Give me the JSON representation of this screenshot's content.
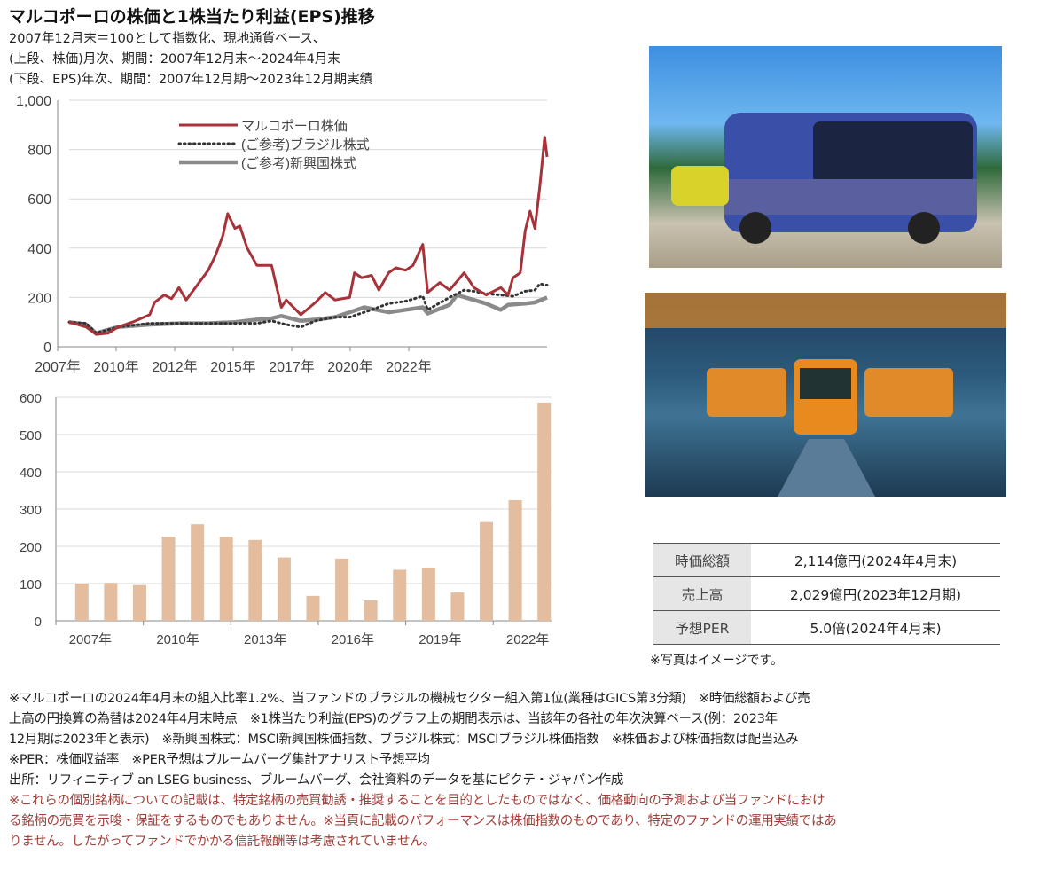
{
  "header": {
    "title": "マルコポーロの株価と1株当たり利益(EPS)推移",
    "subtitle_lines": [
      "2007年12月末＝100として指数化、現地通貨ベース、",
      "(上段、株価)月次、期間：2007年12月末～2024年4月末",
      "(下段、EPS)年次、期間：2007年12月期～2023年12月期実績"
    ]
  },
  "chart_data": [
    {
      "type": "line",
      "ylim": [
        0,
        1000
      ],
      "yticks": [
        "0",
        "200",
        "400",
        "600",
        "800",
        "1,000"
      ],
      "ytick_values": [
        0,
        200,
        400,
        600,
        800,
        1000
      ],
      "xlim": [
        "2007-12",
        "2024-04"
      ],
      "xtick_labels": [
        "2007年",
        "2010年",
        "2012年",
        "2015年",
        "2017年",
        "2020年",
        "2022年"
      ],
      "grid": true,
      "legend_placement": "top-center",
      "series": [
        {
          "name": "マルコポーロ株価",
          "color": "#a8323a",
          "style": "solid",
          "x": [
            "2007-12",
            "2008-07",
            "2008-11",
            "2009-04",
            "2009-08",
            "2010-02",
            "2010-09",
            "2010-11",
            "2011-03",
            "2011-06",
            "2011-09",
            "2011-12",
            "2012-03",
            "2012-09",
            "2012-12",
            "2013-03",
            "2013-05",
            "2013-08",
            "2013-10",
            "2014-01",
            "2014-05",
            "2014-11",
            "2015-03",
            "2015-05",
            "2015-11",
            "2016-05",
            "2016-09",
            "2017-01",
            "2017-07",
            "2017-09",
            "2017-12",
            "2018-04",
            "2018-07",
            "2018-11",
            "2019-02",
            "2019-06",
            "2019-09",
            "2020-01",
            "2020-03",
            "2020-08",
            "2020-12",
            "2021-06",
            "2021-10",
            "2022-03",
            "2022-09",
            "2022-12",
            "2023-02",
            "2023-05",
            "2023-07",
            "2023-09",
            "2023-11",
            "2024-01",
            "2024-03",
            "2024-04"
          ],
          "y": [
            100,
            80,
            50,
            55,
            80,
            100,
            130,
            180,
            210,
            195,
            240,
            190,
            230,
            310,
            370,
            450,
            540,
            480,
            490,
            400,
            330,
            330,
            160,
            190,
            130,
            180,
            220,
            190,
            200,
            300,
            280,
            290,
            230,
            300,
            320,
            310,
            330,
            415,
            220,
            260,
            230,
            300,
            240,
            210,
            240,
            210,
            280,
            300,
            470,
            550,
            480,
            650,
            850,
            770
          ]
        },
        {
          "name": "(ご参考)ブラジル株式",
          "color": "#333333",
          "style": "dotted",
          "x": [
            "2007-12",
            "2008-07",
            "2008-11",
            "2009-08",
            "2010-09",
            "2011-09",
            "2012-09",
            "2013-08",
            "2014-05",
            "2014-11",
            "2015-05",
            "2015-11",
            "2016-05",
            "2017-01",
            "2017-07",
            "2018-04",
            "2018-11",
            "2019-06",
            "2020-01",
            "2020-03",
            "2020-12",
            "2021-06",
            "2021-10",
            "2022-03",
            "2022-09",
            "2023-02",
            "2023-07",
            "2023-11",
            "2024-01",
            "2024-04"
          ],
          "y": [
            100,
            95,
            55,
            80,
            95,
            95,
            95,
            95,
            95,
            105,
            90,
            80,
            105,
            120,
            120,
            150,
            175,
            185,
            205,
            150,
            200,
            230,
            225,
            215,
            210,
            205,
            225,
            230,
            255,
            250
          ]
        },
        {
          "name": "(ご参考)新興国株式",
          "color": "#8a8a8a",
          "style": "solid-thick",
          "x": [
            "2007-12",
            "2008-07",
            "2008-11",
            "2009-08",
            "2010-09",
            "2011-09",
            "2012-09",
            "2013-08",
            "2014-05",
            "2014-11",
            "2015-03",
            "2015-11",
            "2016-05",
            "2017-01",
            "2017-07",
            "2018-01",
            "2018-11",
            "2019-06",
            "2020-01",
            "2020-03",
            "2020-12",
            "2021-03",
            "2021-10",
            "2022-03",
            "2022-09",
            "2022-12",
            "2023-07",
            "2023-11",
            "2024-04"
          ],
          "y": [
            100,
            90,
            55,
            80,
            90,
            95,
            95,
            100,
            110,
            115,
            125,
            105,
            110,
            120,
            140,
            160,
            140,
            150,
            160,
            135,
            170,
            210,
            190,
            175,
            150,
            170,
            175,
            180,
            200
          ]
        }
      ]
    },
    {
      "type": "bar",
      "ylim": [
        0,
        600
      ],
      "yticks": [
        "0",
        "100",
        "200",
        "300",
        "400",
        "500",
        "600"
      ],
      "ytick_values": [
        0,
        100,
        200,
        300,
        400,
        500,
        600
      ],
      "categories": [
        "2007",
        "2008",
        "2009",
        "2010",
        "2011",
        "2012",
        "2013",
        "2014",
        "2015",
        "2016",
        "2017",
        "2018",
        "2019",
        "2020",
        "2021",
        "2022",
        "2023"
      ],
      "xtick_labels": [
        "2007年",
        "2010年",
        "2013年",
        "2016年",
        "2019年",
        "2022年"
      ],
      "values": [
        100,
        102,
        96,
        226,
        259,
        226,
        217,
        170,
        67,
        167,
        55,
        137,
        143,
        76,
        265,
        324,
        586
      ],
      "color": "#e4bc9e",
      "grid": true
    }
  ],
  "photos": [
    {
      "name": "bus-photo"
    },
    {
      "name": "factory-photo"
    }
  ],
  "table": {
    "rows": [
      {
        "key": "時価総額",
        "value": "2,114億円(2024年4月末)"
      },
      {
        "key": "売上高",
        "value": "2,029億円(2023年12月期)"
      },
      {
        "key": "予想PER",
        "value": "5.0倍(2024年4月末)"
      }
    ],
    "photo_note": "※写真はイメージです。"
  },
  "notes": {
    "lines": [
      "※マルコポーロの2024年4月末の組入比率1.2%、当ファンドのブラジルの機械セクター組入第1位(業種はGICS第3分類)　※時価総額および売",
      "上高の円換算の為替は2024年4月末時点　※1株当たり利益(EPS)のグラフ上の期間表示は、当該年の各社の年次決算ベース(例：2023年",
      "12月期は2023年と表示)　※新興国株式：MSCI新興国株価指数、ブラジル株式：MSCIブラジル株価指数　※株価および株価指数は配当込み",
      "※PER：株価収益率　※PER予想はブルームバーグ集計アナリスト予想平均",
      "出所：リフィニティブ an LSEG business、ブルームバーグ、会社資料のデータを基にピクテ・ジャパン作成"
    ],
    "disclaimer_lines": [
      "※これらの個別銘柄についての記載は、特定銘柄の売買勧誘・推奨することを目的としたものではなく、価格動向の予測および当ファンドにおけ",
      "る銘柄の売買を示唆・保証をするものでもありません。※当頁に記載のパフォーマンスは株価指数のものであり、特定のファンドの運用実績ではあ",
      "りません。したがってファンドでかかる信託報酬等は考慮されていません。"
    ]
  }
}
